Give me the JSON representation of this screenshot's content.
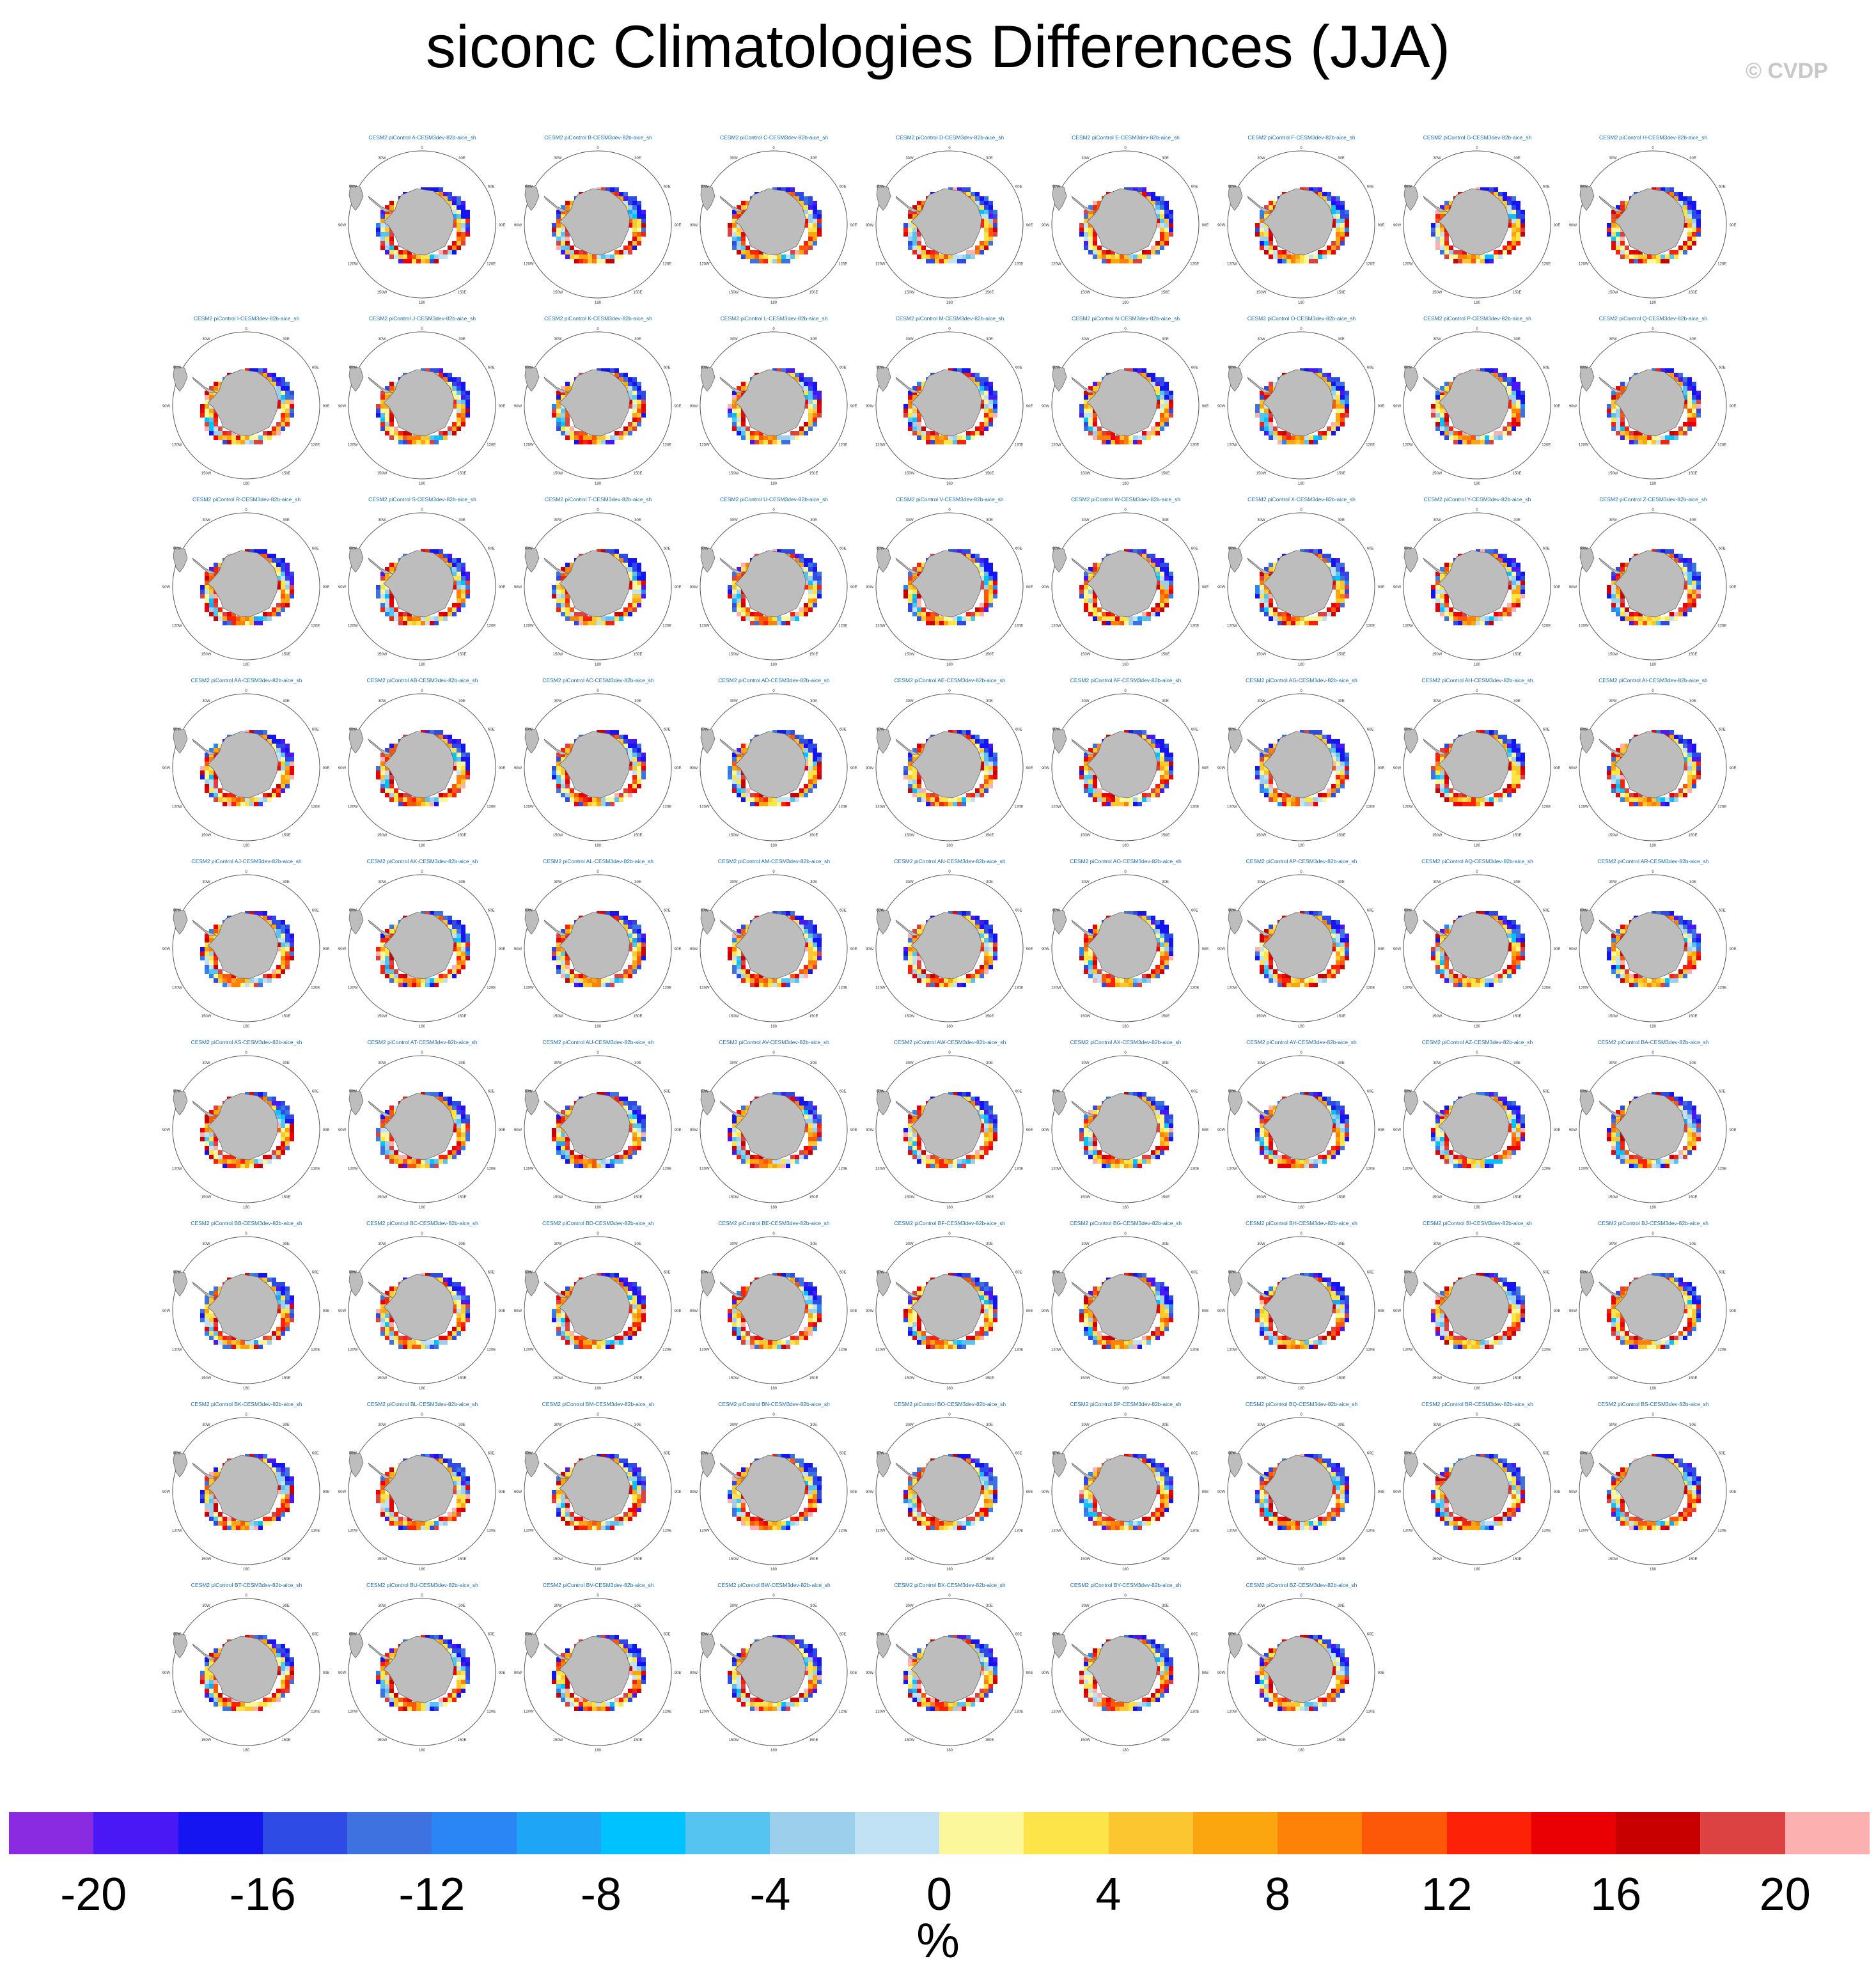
{
  "title": "siconc Climatologies Differences (JJA)",
  "copyright": "© CVDP",
  "chart_data": {
    "type": "heatmap",
    "title": "siconc Climatologies Differences (JJA)",
    "projection": "south polar stereographic",
    "panel_title_template": "CESM2 piControl {case}-CESM3dev-82b-aice_sh",
    "longitude_labels": [
      "0",
      "30E",
      "60E",
      "90E",
      "120E",
      "150E",
      "180",
      "150W",
      "120W",
      "90W",
      "60W",
      "30W"
    ],
    "panels": [
      {
        "case": "A"
      },
      {
        "case": "B"
      },
      {
        "case": "C"
      },
      {
        "case": "D"
      },
      {
        "case": "E"
      },
      {
        "case": "F"
      },
      {
        "case": "G"
      },
      {
        "case": "H"
      },
      {
        "case": "I"
      },
      {
        "case": "J"
      },
      {
        "case": "K"
      },
      {
        "case": "L"
      },
      {
        "case": "M"
      },
      {
        "case": "N"
      },
      {
        "case": "O"
      },
      {
        "case": "P"
      },
      {
        "case": "Q"
      },
      {
        "case": "R"
      },
      {
        "case": "S"
      },
      {
        "case": "T"
      },
      {
        "case": "U"
      },
      {
        "case": "V"
      },
      {
        "case": "W"
      },
      {
        "case": "X"
      },
      {
        "case": "Y"
      },
      {
        "case": "Z"
      },
      {
        "case": "AA"
      },
      {
        "case": "AB"
      },
      {
        "case": "AC"
      },
      {
        "case": "AD"
      },
      {
        "case": "AE"
      },
      {
        "case": "AF"
      },
      {
        "case": "AG"
      },
      {
        "case": "AH"
      },
      {
        "case": "AI"
      },
      {
        "case": "AJ"
      },
      {
        "case": "AK"
      },
      {
        "case": "AL"
      },
      {
        "case": "AM"
      },
      {
        "case": "AN"
      },
      {
        "case": "AO"
      },
      {
        "case": "AP"
      },
      {
        "case": "AQ"
      },
      {
        "case": "AR"
      },
      {
        "case": "AS"
      },
      {
        "case": "AT"
      },
      {
        "case": "AU"
      },
      {
        "case": "AV"
      },
      {
        "case": "AW"
      },
      {
        "case": "AX"
      },
      {
        "case": "AY"
      },
      {
        "case": "AZ"
      },
      {
        "case": "BA"
      },
      {
        "case": "BB"
      },
      {
        "case": "BC"
      },
      {
        "case": "BD"
      },
      {
        "case": "BE"
      },
      {
        "case": "BF"
      },
      {
        "case": "BG"
      },
      {
        "case": "BH"
      },
      {
        "case": "BI"
      },
      {
        "case": "BJ"
      },
      {
        "case": "BK"
      },
      {
        "case": "BL"
      },
      {
        "case": "BM"
      },
      {
        "case": "BN"
      },
      {
        "case": "BO"
      },
      {
        "case": "BP"
      },
      {
        "case": "BQ"
      },
      {
        "case": "BR"
      },
      {
        "case": "BS"
      },
      {
        "case": "BT"
      },
      {
        "case": "BU"
      },
      {
        "case": "BV"
      },
      {
        "case": "BW"
      },
      {
        "case": "BX"
      },
      {
        "case": "BY"
      },
      {
        "case": "BZ"
      }
    ],
    "row_sizes": [
      8,
      9,
      9,
      9,
      9,
      9,
      9,
      9,
      7
    ],
    "colorbar": {
      "units": "%",
      "levels": [
        -20,
        -18,
        -16,
        -14,
        -12,
        -10,
        -8,
        -6,
        -4,
        -2,
        0,
        2,
        4,
        6,
        8,
        10,
        12,
        14,
        16,
        18,
        20
      ],
      "tick_labels": [
        "-20",
        "-16",
        "-12",
        "-8",
        "-4",
        "0",
        "4",
        "8",
        "12",
        "16",
        "20"
      ],
      "colors": [
        "#8a2be2",
        "#4a17f5",
        "#1515f2",
        "#2f4be6",
        "#3d72e0",
        "#2a86f5",
        "#1ea5f5",
        "#00c2ff",
        "#55c4f0",
        "#9ccfeb",
        "#c0e2f4",
        "#fdf79c",
        "#fde449",
        "#fbc630",
        "#fca60f",
        "#fe8208",
        "#fd5807",
        "#fd2108",
        "#ea0004",
        "#c80000",
        "#dc4242",
        "#fcb0b0"
      ]
    }
  }
}
